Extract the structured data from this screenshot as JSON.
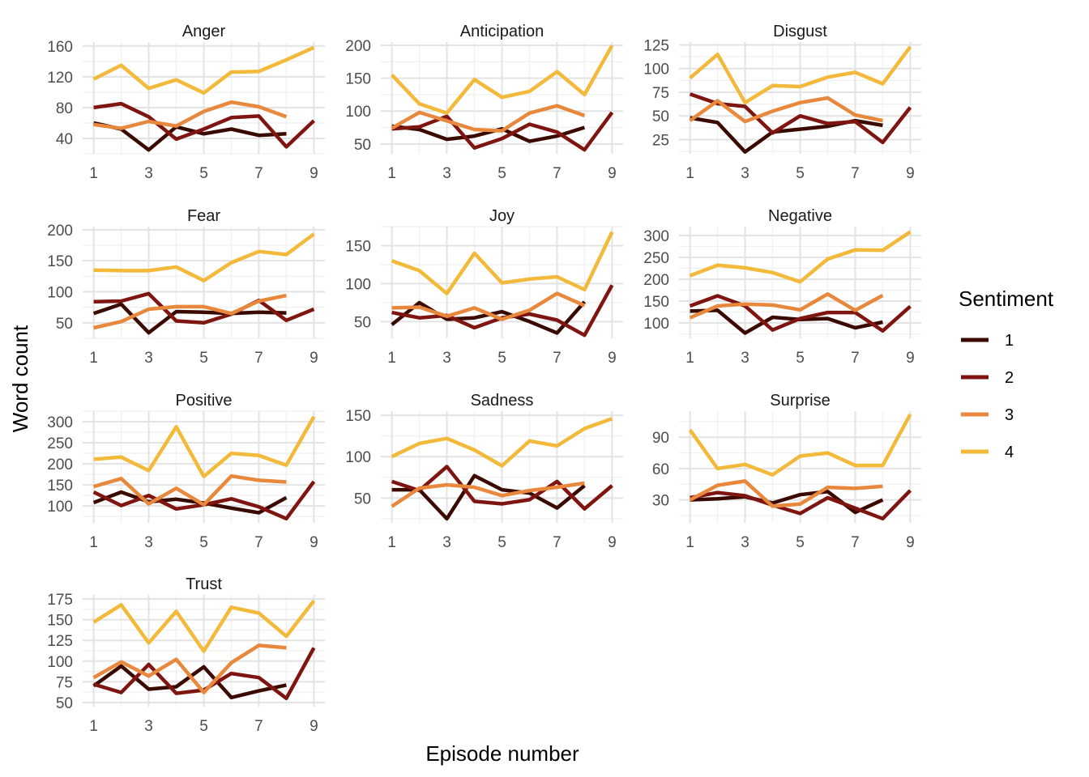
{
  "chart_data": {
    "type": "line",
    "xlabel": "Episode number",
    "ylabel": "Word count",
    "grid": true,
    "legend": {
      "title": "Sentiment",
      "position": "right",
      "entries": [
        "1",
        "2",
        "3",
        "4"
      ]
    },
    "colors": {
      "1": "#3a0a00",
      "2": "#7f1511",
      "3": "#e8883d",
      "4": "#f2b93b"
    },
    "x_ticks": [
      1,
      3,
      5,
      7,
      9
    ],
    "xlim": [
      1,
      9
    ],
    "panels": [
      {
        "title": "Anger",
        "ylim": [
          20,
          165
        ],
        "y_ticks": [
          40,
          80,
          120,
          160
        ],
        "series": [
          {
            "name": "1",
            "x": [
              1,
              2,
              3,
              4,
              5,
              6,
              7,
              8
            ],
            "y": [
              60,
              52,
              25,
              55,
              46,
              52,
              44,
              46
            ]
          },
          {
            "name": "2",
            "x": [
              1,
              2,
              3,
              4,
              5,
              6,
              7,
              8,
              9
            ],
            "y": [
              80,
              85,
              68,
              39,
              52,
              67,
              69,
              29,
              63
            ]
          },
          {
            "name": "3",
            "x": [
              1,
              2,
              3,
              4,
              5,
              6,
              7,
              8
            ],
            "y": [
              58,
              53,
              62,
              56,
              75,
              87,
              81,
              68
            ]
          },
          {
            "name": "4",
            "x": [
              1,
              2,
              3,
              4,
              5,
              6,
              7,
              8,
              9
            ],
            "y": [
              117,
              135,
              105,
              116,
              99,
              126,
              127,
              142,
              158
            ]
          }
        ]
      },
      {
        "title": "Anticipation",
        "ylim": [
          35,
          205
        ],
        "y_ticks": [
          50,
          100,
          150,
          200
        ],
        "series": [
          {
            "name": "1",
            "x": [
              1,
              2,
              3,
              4,
              5,
              6,
              7,
              8
            ],
            "y": [
              77,
              72,
              57,
              62,
              73,
              54,
              62,
              75
            ]
          },
          {
            "name": "2",
            "x": [
              1,
              2,
              3,
              4,
              5,
              6,
              7,
              8,
              9
            ],
            "y": [
              73,
              76,
              92,
              44,
              58,
              80,
              68,
              41,
              98
            ]
          },
          {
            "name": "3",
            "x": [
              1,
              2,
              3,
              4,
              5,
              6,
              7,
              8
            ],
            "y": [
              74,
              98,
              85,
              72,
              70,
              97,
              108,
              93
            ]
          },
          {
            "name": "4",
            "x": [
              1,
              2,
              3,
              4,
              5,
              6,
              7,
              8,
              9
            ],
            "y": [
              155,
              111,
              97,
              148,
              121,
              130,
              160,
              125,
              200
            ]
          }
        ]
      },
      {
        "title": "Disgust",
        "ylim": [
          10,
          128
        ],
        "y_ticks": [
          25,
          50,
          75,
          100,
          125
        ],
        "series": [
          {
            "name": "1",
            "x": [
              1,
              2,
              3,
              4,
              5,
              6,
              7,
              8
            ],
            "y": [
              48,
              43,
              12,
              33,
              36,
              39,
              45,
              40
            ]
          },
          {
            "name": "2",
            "x": [
              1,
              2,
              3,
              4,
              5,
              6,
              7,
              8,
              9
            ],
            "y": [
              73,
              63,
              60,
              32,
              50,
              42,
              44,
              22,
              59
            ]
          },
          {
            "name": "3",
            "x": [
              1,
              2,
              3,
              4,
              5,
              6,
              7,
              8
            ],
            "y": [
              45,
              66,
              44,
              55,
              64,
              69,
              51,
              45
            ]
          },
          {
            "name": "4",
            "x": [
              1,
              2,
              3,
              4,
              5,
              6,
              7,
              8,
              9
            ],
            "y": [
              90,
              115,
              64,
              82,
              81,
              91,
              96,
              84,
              123
            ]
          }
        ]
      },
      {
        "title": "Fear",
        "ylim": [
          25,
          205
        ],
        "y_ticks": [
          50,
          100,
          150,
          200
        ],
        "series": [
          {
            "name": "1",
            "x": [
              1,
              2,
              3,
              4,
              5,
              6,
              7,
              8
            ],
            "y": [
              65,
              80,
              34,
              68,
              67,
              65,
              67,
              66
            ]
          },
          {
            "name": "2",
            "x": [
              1,
              2,
              3,
              4,
              5,
              6,
              7,
              8,
              9
            ],
            "y": [
              84,
              85,
              97,
              53,
              50,
              64,
              86,
              54,
              72
            ]
          },
          {
            "name": "3",
            "x": [
              1,
              2,
              3,
              4,
              5,
              6,
              7,
              8
            ],
            "y": [
              42,
              52,
              72,
              76,
              76,
              65,
              85,
              94
            ]
          },
          {
            "name": "4",
            "x": [
              1,
              2,
              3,
              4,
              5,
              6,
              7,
              8,
              9
            ],
            "y": [
              135,
              134,
              134,
              140,
              118,
              147,
              165,
              160,
              193
            ]
          }
        ]
      },
      {
        "title": "Joy",
        "ylim": [
          28,
          175
        ],
        "y_ticks": [
          50,
          100,
          150
        ],
        "series": [
          {
            "name": "1",
            "x": [
              1,
              2,
              3,
              4,
              5,
              6,
              7,
              8
            ],
            "y": [
              46,
              75,
              53,
              55,
              63,
              50,
              35,
              76
            ]
          },
          {
            "name": "2",
            "x": [
              1,
              2,
              3,
              4,
              5,
              6,
              7,
              8,
              9
            ],
            "y": [
              62,
              55,
              58,
              42,
              55,
              60,
              52,
              32,
              98
            ]
          },
          {
            "name": "3",
            "x": [
              1,
              2,
              3,
              4,
              5,
              6,
              7,
              8
            ],
            "y": [
              68,
              69,
              57,
              68,
              53,
              65,
              87,
              71
            ]
          },
          {
            "name": "4",
            "x": [
              1,
              2,
              3,
              4,
              5,
              6,
              7,
              8,
              9
            ],
            "y": [
              130,
              117,
              87,
              140,
              101,
              106,
              109,
              92,
              168
            ]
          }
        ]
      },
      {
        "title": "Negative",
        "ylim": [
          65,
          320
        ],
        "y_ticks": [
          100,
          150,
          200,
          250,
          300
        ],
        "series": [
          {
            "name": "1",
            "x": [
              1,
              2,
              3,
              4,
              5,
              6,
              7,
              8
            ],
            "y": [
              127,
              129,
              77,
              113,
              108,
              110,
              89,
              102
            ]
          },
          {
            "name": "2",
            "x": [
              1,
              2,
              3,
              4,
              5,
              6,
              7,
              8,
              9
            ],
            "y": [
              139,
              162,
              139,
              84,
              110,
              124,
              124,
              82,
              138
            ]
          },
          {
            "name": "3",
            "x": [
              1,
              2,
              3,
              4,
              5,
              6,
              7,
              8
            ],
            "y": [
              112,
              139,
              143,
              141,
              130,
              166,
              129,
              163
            ]
          },
          {
            "name": "4",
            "x": [
              1,
              2,
              3,
              4,
              5,
              6,
              7,
              8,
              9
            ],
            "y": [
              208,
              232,
              226,
              215,
              194,
              246,
              267,
              266,
              308
            ]
          }
        ]
      },
      {
        "title": "Positive",
        "ylim": [
          60,
          325
        ],
        "y_ticks": [
          100,
          150,
          200,
          250,
          300
        ],
        "series": [
          {
            "name": "1",
            "x": [
              1,
              2,
              3,
              4,
              5,
              6,
              7,
              8
            ],
            "y": [
              108,
              133,
              110,
              116,
              107,
              95,
              84,
              120
            ]
          },
          {
            "name": "2",
            "x": [
              1,
              2,
              3,
              4,
              5,
              6,
              7,
              8,
              9
            ],
            "y": [
              133,
              101,
              125,
              93,
              103,
              117,
              98,
              70,
              158
            ]
          },
          {
            "name": "3",
            "x": [
              1,
              2,
              3,
              4,
              5,
              6,
              7,
              8
            ],
            "y": [
              146,
              165,
              105,
              142,
              103,
              171,
              161,
              157
            ]
          },
          {
            "name": "4",
            "x": [
              1,
              2,
              3,
              4,
              5,
              6,
              7,
              8,
              9
            ],
            "y": [
              211,
              216,
              184,
              288,
              170,
              225,
              220,
              197,
              312
            ]
          }
        ]
      },
      {
        "title": "Sadness",
        "ylim": [
          20,
          155
        ],
        "y_ticks": [
          50,
          100,
          150
        ],
        "series": [
          {
            "name": "1",
            "x": [
              1,
              2,
              3,
              4,
              5,
              6,
              7,
              8
            ],
            "y": [
              60,
              60,
              25,
              77,
              60,
              56,
              38,
              65
            ]
          },
          {
            "name": "2",
            "x": [
              1,
              2,
              3,
              4,
              5,
              6,
              7,
              8,
              9
            ],
            "y": [
              70,
              59,
              88,
              46,
              43,
              48,
              70,
              37,
              65
            ]
          },
          {
            "name": "3",
            "x": [
              1,
              2,
              3,
              4,
              5,
              6,
              7,
              8
            ],
            "y": [
              40,
              62,
              66,
              63,
              53,
              59,
              63,
              68
            ]
          },
          {
            "name": "4",
            "x": [
              1,
              2,
              3,
              4,
              5,
              6,
              7,
              8,
              9
            ],
            "y": [
              100,
              116,
              122,
              108,
              89,
              119,
              113,
              134,
              146
            ]
          }
        ]
      },
      {
        "title": "Surprise",
        "ylim": [
          8,
          115
        ],
        "y_ticks": [
          30,
          60,
          90
        ],
        "series": [
          {
            "name": "1",
            "x": [
              1,
              2,
              3,
              4,
              5,
              6,
              7,
              8
            ],
            "y": [
              30,
              31,
              33,
              27,
              35,
              38,
              18,
              30
            ]
          },
          {
            "name": "2",
            "x": [
              1,
              2,
              3,
              4,
              5,
              6,
              7,
              8,
              9
            ],
            "y": [
              32,
              37,
              34,
              25,
              17,
              32,
              22,
              12,
              39
            ]
          },
          {
            "name": "3",
            "x": [
              1,
              2,
              3,
              4,
              5,
              6,
              7,
              8
            ],
            "y": [
              30,
              44,
              48,
              24,
              26,
              42,
              41,
              43
            ]
          },
          {
            "name": "4",
            "x": [
              1,
              2,
              3,
              4,
              5,
              6,
              7,
              8,
              9
            ],
            "y": [
              97,
              60,
              64,
              54,
              72,
              75,
              63,
              63,
              112
            ]
          }
        ]
      },
      {
        "title": "Trust",
        "ylim": [
          45,
          180
        ],
        "y_ticks": [
          50,
          75,
          100,
          125,
          150,
          175
        ],
        "series": [
          {
            "name": "1",
            "x": [
              1,
              2,
              3,
              4,
              5,
              6,
              7,
              8
            ],
            "y": [
              70,
              94,
              66,
              69,
              93,
              56,
              64,
              71
            ]
          },
          {
            "name": "2",
            "x": [
              1,
              2,
              3,
              4,
              5,
              6,
              7,
              8,
              9
            ],
            "y": [
              72,
              62,
              96,
              61,
              65,
              85,
              80,
              55,
              116
            ]
          },
          {
            "name": "3",
            "x": [
              1,
              2,
              3,
              4,
              5,
              6,
              7,
              8
            ],
            "y": [
              80,
              99,
              82,
              102,
              62,
              98,
              119,
              116
            ]
          },
          {
            "name": "4",
            "x": [
              1,
              2,
              3,
              4,
              5,
              6,
              7,
              8,
              9
            ],
            "y": [
              147,
              168,
              122,
              160,
              112,
              165,
              158,
              130,
              173
            ]
          }
        ]
      }
    ]
  }
}
